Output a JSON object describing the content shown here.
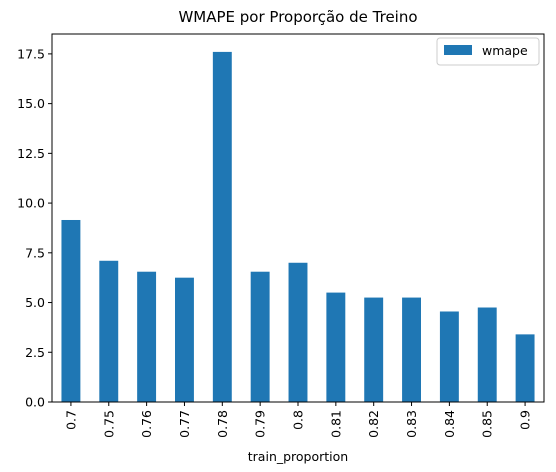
{
  "chart_data": {
    "type": "bar",
    "title": "WMAPE por Proporção de Treino",
    "xlabel": "train_proportion",
    "ylabel": "",
    "categories": [
      "0.7",
      "0.75",
      "0.76",
      "0.77",
      "0.78",
      "0.79",
      "0.8",
      "0.81",
      "0.82",
      "0.83",
      "0.84",
      "0.85",
      "0.9"
    ],
    "series": [
      {
        "name": "wmape",
        "color": "#1f77b4",
        "values": [
          9.15,
          7.1,
          6.55,
          6.25,
          17.6,
          6.55,
          7.0,
          5.5,
          5.25,
          5.25,
          4.55,
          4.75,
          3.4
        ]
      }
    ],
    "ylim": [
      0,
      18.5
    ],
    "yticks": [
      "0.0",
      "2.5",
      "5.0",
      "7.5",
      "10.0",
      "12.5",
      "15.0",
      "17.5"
    ],
    "grid": false,
    "legend_position": "top-right"
  }
}
